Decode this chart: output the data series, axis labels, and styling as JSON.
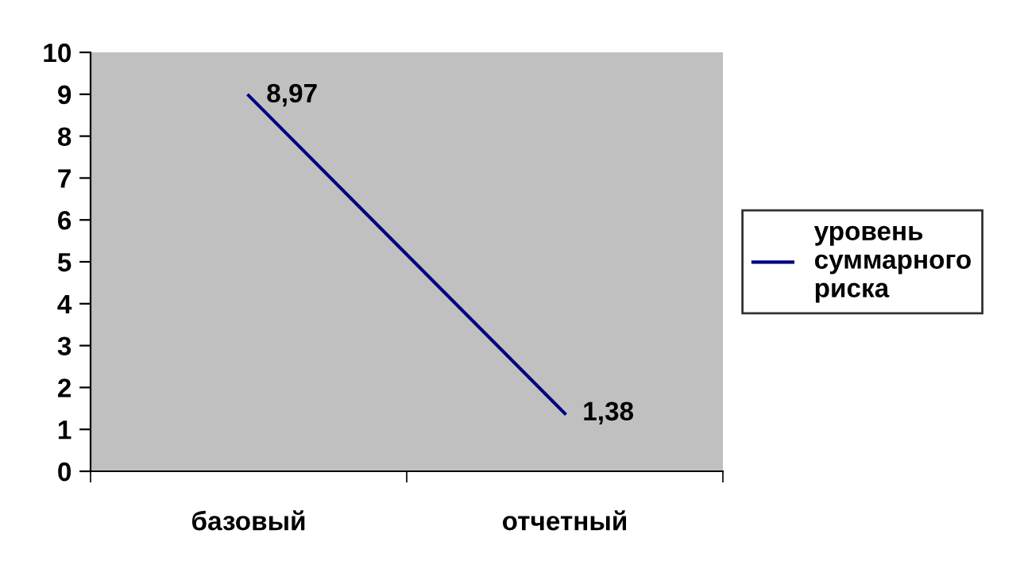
{
  "chart_data": {
    "type": "line",
    "categories": [
      "базовый",
      "отчетный"
    ],
    "series": [
      {
        "name": "уровень\nсуммарного\nриска",
        "color": "#000080",
        "values": [
          8.97,
          1.38
        ],
        "value_labels": [
          "8,97",
          "1,38"
        ]
      }
    ],
    "ylim": [
      0,
      10
    ],
    "yticks": [
      0,
      1,
      2,
      3,
      4,
      5,
      6,
      7,
      8,
      9,
      10
    ],
    "grid": false,
    "legend": "right",
    "marker": "none",
    "line_style": "solid"
  }
}
